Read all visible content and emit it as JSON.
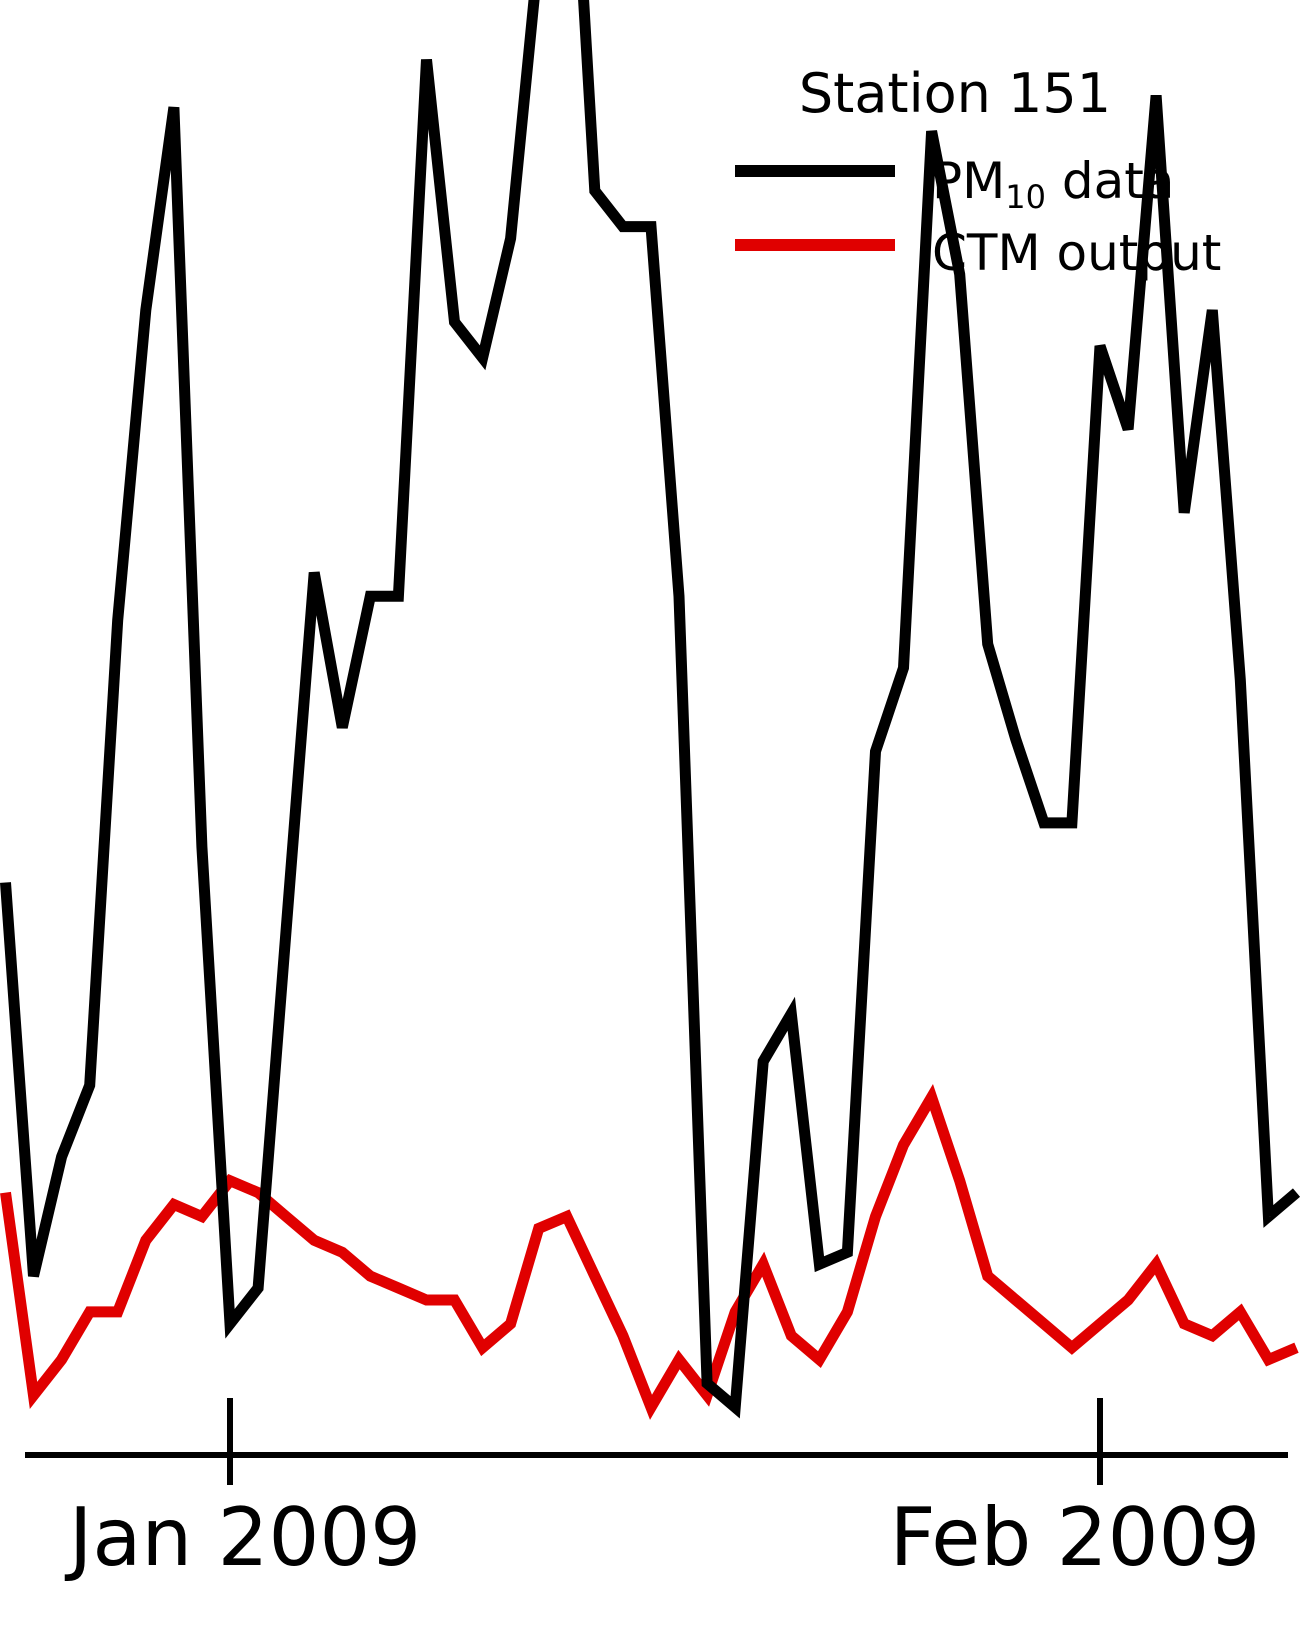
{
  "chart_data": {
    "type": "line",
    "title": "",
    "xlabel": "",
    "ylabel": "",
    "x_axis": {
      "type": "date",
      "range": [
        "2008-12-25",
        "2009-03-07"
      ],
      "ticks": [
        {
          "date": "2009-01-01",
          "label": "Jan 2009"
        },
        {
          "date": "2009-02-01",
          "label": "Feb 2009"
        }
      ]
    },
    "y_axis": {
      "visible": false,
      "range": [
        0,
        122
      ]
    },
    "grid": false,
    "legend": {
      "title": "Station 151",
      "position": "top-right",
      "entries": [
        {
          "label_main": "PM",
          "label_sub": "10",
          "label_rest": " data",
          "color": "#000000"
        },
        {
          "label_main": "CTM output",
          "label_sub": "",
          "label_rest": "",
          "color": "#e00000"
        }
      ]
    },
    "series": [
      {
        "name": "PM10 data",
        "color": "#000000",
        "x": [
          "2008-12-24",
          "2008-12-25",
          "2008-12-26",
          "2008-12-27",
          "2008-12-28",
          "2008-12-29",
          "2008-12-30",
          "2008-12-31",
          "2009-01-01",
          "2009-01-02",
          "2009-01-03",
          "2009-01-04",
          "2009-01-05",
          "2009-01-06",
          "2009-01-07",
          "2009-01-08",
          "2009-01-09",
          "2009-01-10",
          "2009-01-11",
          "2009-01-12",
          "2009-01-13",
          "2009-01-14",
          "2009-01-15",
          "2009-01-16",
          "2009-01-17",
          "2009-01-18",
          "2009-01-19",
          "2009-01-20",
          "2009-01-21",
          "2009-01-22",
          "2009-01-23",
          "2009-01-24",
          "2009-01-25",
          "2009-01-26",
          "2009-01-27",
          "2009-01-28",
          "2009-01-29",
          "2009-01-30",
          "2009-01-31",
          "2009-02-01",
          "2009-02-02",
          "2009-02-03",
          "2009-02-04",
          "2009-02-05",
          "2009-02-06",
          "2009-02-07",
          "2009-02-08"
        ],
        "values": [
          48,
          15,
          25,
          31,
          70,
          96,
          113,
          51,
          11,
          14,
          44,
          74,
          61,
          72,
          72,
          117,
          95,
          92,
          102,
          126,
          146,
          106,
          103,
          103,
          72,
          6,
          4,
          33,
          37,
          16,
          17,
          59,
          66,
          111,
          99,
          68,
          60,
          53,
          53,
          93,
          86,
          114,
          79,
          96,
          65,
          20,
          22
        ]
      },
      {
        "name": "CTM output",
        "color": "#e00000",
        "x": [
          "2008-12-24",
          "2008-12-25",
          "2008-12-26",
          "2008-12-27",
          "2008-12-28",
          "2008-12-29",
          "2008-12-30",
          "2008-12-31",
          "2009-01-01",
          "2009-01-02",
          "2009-01-03",
          "2009-01-04",
          "2009-01-05",
          "2009-01-06",
          "2009-01-07",
          "2009-01-08",
          "2009-01-09",
          "2009-01-10",
          "2009-01-11",
          "2009-01-12",
          "2009-01-13",
          "2009-01-14",
          "2009-01-15",
          "2009-01-16",
          "2009-01-17",
          "2009-01-18",
          "2009-01-19",
          "2009-01-20",
          "2009-01-21",
          "2009-01-22",
          "2009-01-23",
          "2009-01-24",
          "2009-01-25",
          "2009-01-26",
          "2009-01-27",
          "2009-01-28",
          "2009-01-29",
          "2009-01-30",
          "2009-01-31",
          "2009-02-01",
          "2009-02-02",
          "2009-02-03",
          "2009-02-04",
          "2009-02-05",
          "2009-02-06",
          "2009-02-07",
          "2009-02-08"
        ],
        "values": [
          22,
          5,
          8,
          12,
          12,
          18,
          21,
          20,
          23,
          22,
          20,
          18,
          17,
          15,
          14,
          13,
          13,
          9,
          11,
          19,
          20,
          15,
          10,
          4,
          8,
          5,
          12,
          16,
          10,
          8,
          12,
          20,
          26,
          30,
          23,
          15,
          13,
          11,
          9,
          11,
          13,
          16,
          11,
          10,
          12,
          8,
          9
        ]
      }
    ]
  }
}
